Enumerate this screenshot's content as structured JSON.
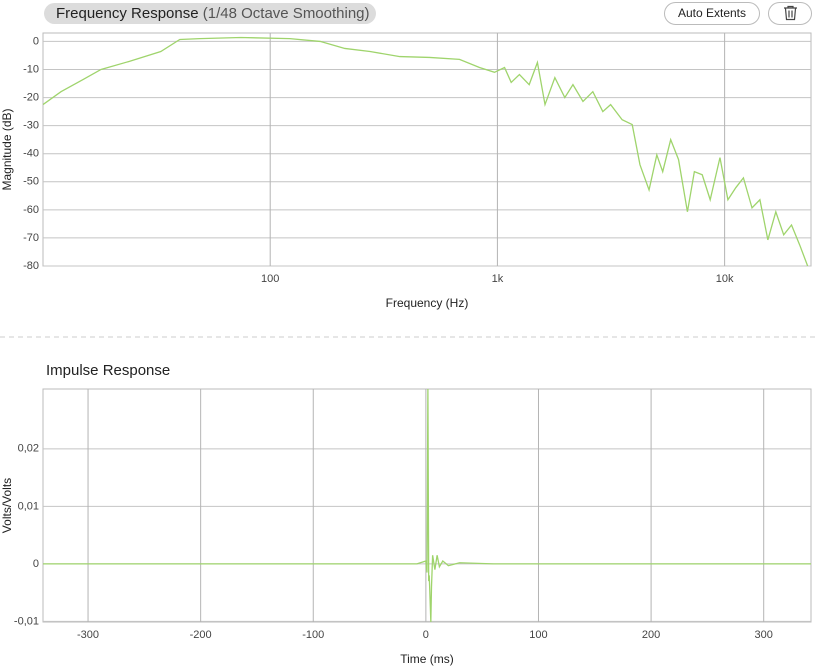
{
  "toolbar": {
    "button": "Auto Extents"
  },
  "chart_data": [
    {
      "type": "line",
      "title": "Frequency Response",
      "subtitle": "(1/48 Octave Smoothing)",
      "x_label": "Frequency (Hz)",
      "y_label": "Magnitude (dB)",
      "log_x": true,
      "grid": true,
      "color": "#9fd46c",
      "xlim": [
        10,
        24000
      ],
      "ylim": [
        -80,
        3
      ],
      "xticks": [
        100,
        {
          "value": 1000,
          "label": "1k"
        },
        {
          "value": 10000,
          "label": "10k"
        }
      ],
      "yticks": [
        0,
        -10,
        -20,
        -30,
        -40,
        -50,
        -60,
        -70,
        -80
      ],
      "x": [
        10,
        12,
        15,
        18,
        24,
        33,
        40,
        49,
        74,
        122,
        166,
        213,
        275,
        372,
        503,
        681,
        834,
        971,
        1075,
        1150,
        1250,
        1380,
        1500,
        1620,
        1790,
        1980,
        2150,
        2380,
        2630,
        2910,
        3150,
        3540,
        3920,
        4240,
        4650,
        5030,
        5340,
        5790,
        6270,
        6860,
        7360,
        7970,
        8640,
        9540,
        10340,
        11200,
        12100,
        13200,
        14300,
        15500,
        16800,
        18200,
        19700,
        21400,
        23200
      ],
      "values": [
        -22.5,
        -17.9,
        -13.6,
        -10,
        -7.1,
        -3.6,
        0.7,
        1,
        1.4,
        1,
        0,
        -2.5,
        -3.6,
        -5.4,
        -5.7,
        -6.4,
        -9.3,
        -11,
        -9.3,
        -14.6,
        -11.8,
        -15.4,
        -7.5,
        -22.5,
        -12.9,
        -20,
        -15.4,
        -21.4,
        -17.9,
        -25,
        -22.5,
        -27.9,
        -29.6,
        -43.9,
        -52.9,
        -40.4,
        -46.4,
        -35,
        -42.1,
        -60.7,
        -46.4,
        -47.5,
        -56.4,
        -41.4,
        -56.4,
        -52.1,
        -48.6,
        -59.3,
        -56.4,
        -70.7,
        -60.7,
        -68.9,
        -65.4,
        -72.5,
        -80
      ]
    },
    {
      "type": "line",
      "title": "Impulse Response",
      "x_label": "Time (ms)",
      "y_label": "Volts/Volts",
      "log_x": false,
      "grid": true,
      "color": "#9fd46c",
      "xlim": [
        -340,
        342
      ],
      "ylim": [
        -0.0101,
        0.0304
      ],
      "xticks": [
        -300,
        -200,
        -100,
        0,
        100,
        200,
        300
      ],
      "yticks": [
        {
          "value": -0.01,
          "label": "-0,01"
        },
        0,
        {
          "value": 0.01,
          "label": "0,01"
        },
        {
          "value": 0.02,
          "label": "0,02"
        }
      ],
      "x": [
        -340,
        -8,
        0,
        1,
        1.8,
        2.5,
        3,
        4.4,
        5,
        6,
        8,
        10,
        12,
        15,
        20,
        30,
        60,
        342
      ],
      "values": [
        0,
        0,
        0.0005,
        -0.0015,
        0.0304,
        -0.003,
        -0.002,
        -0.0101,
        -0.004,
        0.0015,
        -0.001,
        0.0015,
        -0.0005,
        0.0005,
        -0.0003,
        0.0002,
        0,
        0
      ]
    }
  ]
}
